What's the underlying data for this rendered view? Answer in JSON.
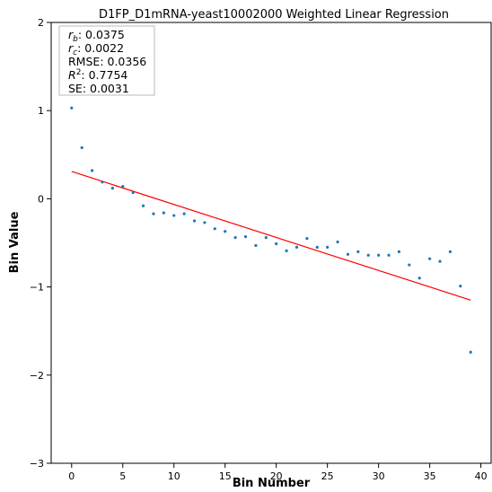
{
  "chart_data": {
    "type": "scatter",
    "title": "D1FP_D1mRNA-yeast10002000 Weighted Linear Regression",
    "xlabel": "Bin Number",
    "ylabel": "Bin Value",
    "xlim": [
      -2,
      41
    ],
    "ylim": [
      -3,
      2
    ],
    "xticks": [
      0,
      5,
      10,
      15,
      20,
      25,
      30,
      35,
      40
    ],
    "yticks": [
      -3,
      -2,
      -1,
      0,
      1,
      2
    ],
    "grid": false,
    "colors": {
      "points": "#1f77b4",
      "fit": "#ff0000"
    },
    "stats": [
      {
        "name": "r",
        "sub": "b",
        "value": ": 0.0375"
      },
      {
        "name": "r",
        "sub": "c",
        "value": ": 0.0022"
      },
      {
        "name": "RMSE",
        "value": ": 0.0356"
      },
      {
        "name": "R",
        "sup": "2",
        "value": ": 0.7754"
      },
      {
        "name": "SE",
        "value": ": 0.0031"
      }
    ],
    "series": [
      {
        "kind": "points",
        "x": [
          0,
          1,
          2,
          3,
          4,
          5,
          6,
          7,
          8,
          9,
          10,
          11,
          12,
          13,
          14,
          15,
          16,
          17,
          18,
          19,
          20,
          21,
          22,
          23,
          24,
          25,
          26,
          27,
          28,
          29,
          30,
          31,
          32,
          33,
          34,
          35,
          36,
          37,
          38,
          39
        ],
        "y": [
          1.03,
          0.58,
          0.32,
          0.19,
          0.12,
          0.14,
          0.07,
          -0.08,
          -0.17,
          -0.16,
          -0.19,
          -0.17,
          -0.25,
          -0.27,
          -0.34,
          -0.37,
          -0.44,
          -0.43,
          -0.53,
          -0.44,
          -0.51,
          -0.59,
          -0.55,
          -0.45,
          -0.55,
          -0.55,
          -0.49,
          -0.63,
          -0.6,
          -0.64,
          -0.64,
          -0.64,
          -0.6,
          -0.75,
          -0.9,
          -0.68,
          -0.71,
          -0.6,
          -0.99,
          -1.74
        ]
      },
      {
        "kind": "fit",
        "x": [
          0,
          39
        ],
        "y": [
          0.31,
          -1.15
        ]
      }
    ]
  }
}
